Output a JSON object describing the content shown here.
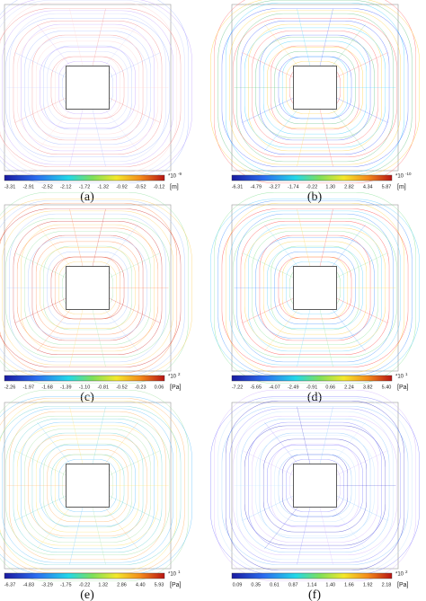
{
  "panels": [
    {
      "label": "(a)",
      "multiplier": "*10",
      "exponent": "-9",
      "unit": "[m]",
      "ticks": [
        "-3.31",
        "-2.91",
        "-2.52",
        "-2.12",
        "-1.72",
        "-1.32",
        "-0.92",
        "-0.52",
        "-0.12"
      ]
    },
    {
      "label": "(b)",
      "multiplier": "*10",
      "exponent": "-10",
      "unit": "[m]",
      "ticks": [
        "-6.31",
        "-4.79",
        "-3.27",
        "-1.74",
        "-0.22",
        "1.30",
        "2.82",
        "4.34",
        "5.87"
      ]
    },
    {
      "label": "(c)",
      "multiplier": "*10",
      "exponent": "2",
      "unit": "[Pa]",
      "ticks": [
        "-2.26",
        "-1.97",
        "-1.68",
        "-1.39",
        "-1.10",
        "-0.81",
        "-0.52",
        "-0.23",
        "0.06"
      ]
    },
    {
      "label": "(d)",
      "multiplier": "*10",
      "exponent": "1",
      "unit": "[Pa]",
      "ticks": [
        "-7.22",
        "-5.65",
        "-4.07",
        "-2.49",
        "-0.91",
        "0.66",
        "2.24",
        "3.82",
        "5.40"
      ]
    },
    {
      "label": "(e)",
      "multiplier": "*10",
      "exponent": "1",
      "unit": "[Pa]",
      "ticks": [
        "-6.37",
        "-4.83",
        "-3.29",
        "-1.75",
        "-0.22",
        "1.32",
        "2.86",
        "4.40",
        "5.93"
      ]
    },
    {
      "label": "(f)",
      "multiplier": "*10",
      "exponent": "2",
      "unit": "[Pa]",
      "ticks": [
        "0.09",
        "0.35",
        "0.61",
        "0.87",
        "1.14",
        "1.40",
        "1.66",
        "1.92",
        "2.18"
      ]
    }
  ]
}
